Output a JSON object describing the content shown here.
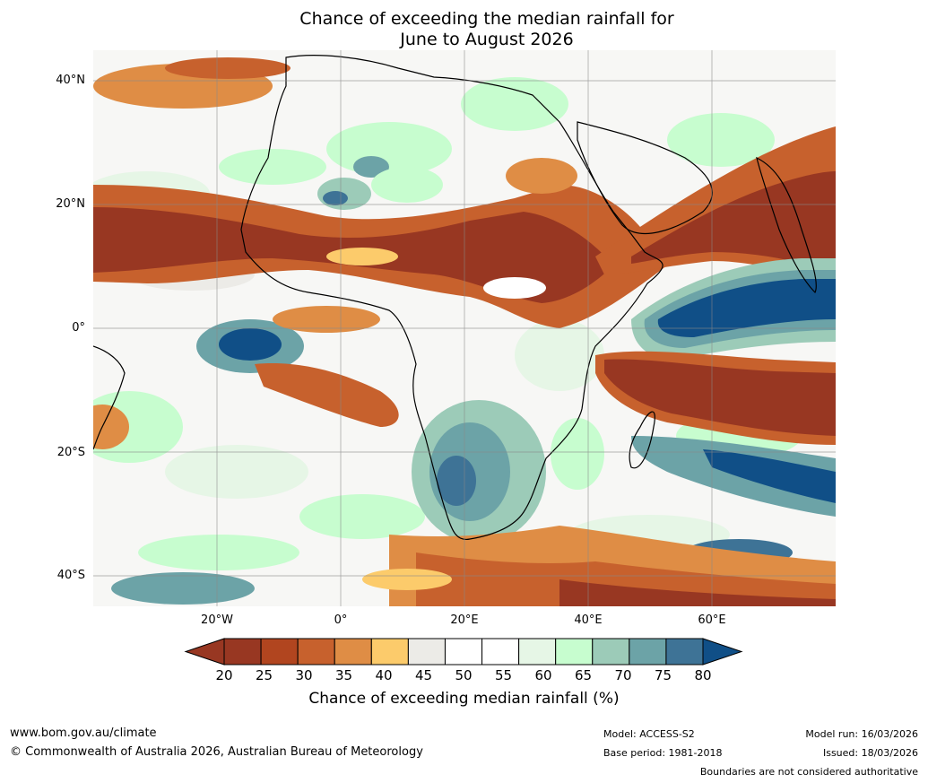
{
  "title_line1": "Chance of exceeding the median rainfall for",
  "title_line2": "June to August 2026",
  "map": {
    "lat_labels": [
      "40°N",
      "20°N",
      "0°",
      "20°S",
      "40°S"
    ],
    "lon_labels": [
      "20°W",
      "0°",
      "20°E",
      "40°E",
      "60°E"
    ],
    "ocean_color": "#f7f7f5",
    "grid_color": "#888888"
  },
  "colorbar": {
    "ticks": [
      "20",
      "25",
      "30",
      "35",
      "40",
      "45",
      "50",
      "55",
      "60",
      "65",
      "70",
      "75",
      "80"
    ],
    "colors": [
      "#983722",
      "#b1451f",
      "#c7612d",
      "#df8d45",
      "#fccb6b",
      "#ecebe7",
      "#ffffff",
      "#ffffff",
      "#e6f6e6",
      "#c7fdcf",
      "#9ccbb8",
      "#6ca3a7",
      "#3e7396"
    ],
    "under_color": "#983722",
    "over_color": "#104f87",
    "label": "Chance of exceeding median rainfall (%)"
  },
  "footer": {
    "url": "www.bom.gov.au/climate",
    "copyright": "© Commonwealth of Australia 2026, Australian Bureau of Meteorology",
    "model": "Model: ACCESS-S2",
    "base_period": "Base period: 1981-2018",
    "model_run": "Model run: 16/03/2026",
    "issued": "Issued: 18/03/2026",
    "disclaimer": "Boundaries are not considered authoritative"
  }
}
